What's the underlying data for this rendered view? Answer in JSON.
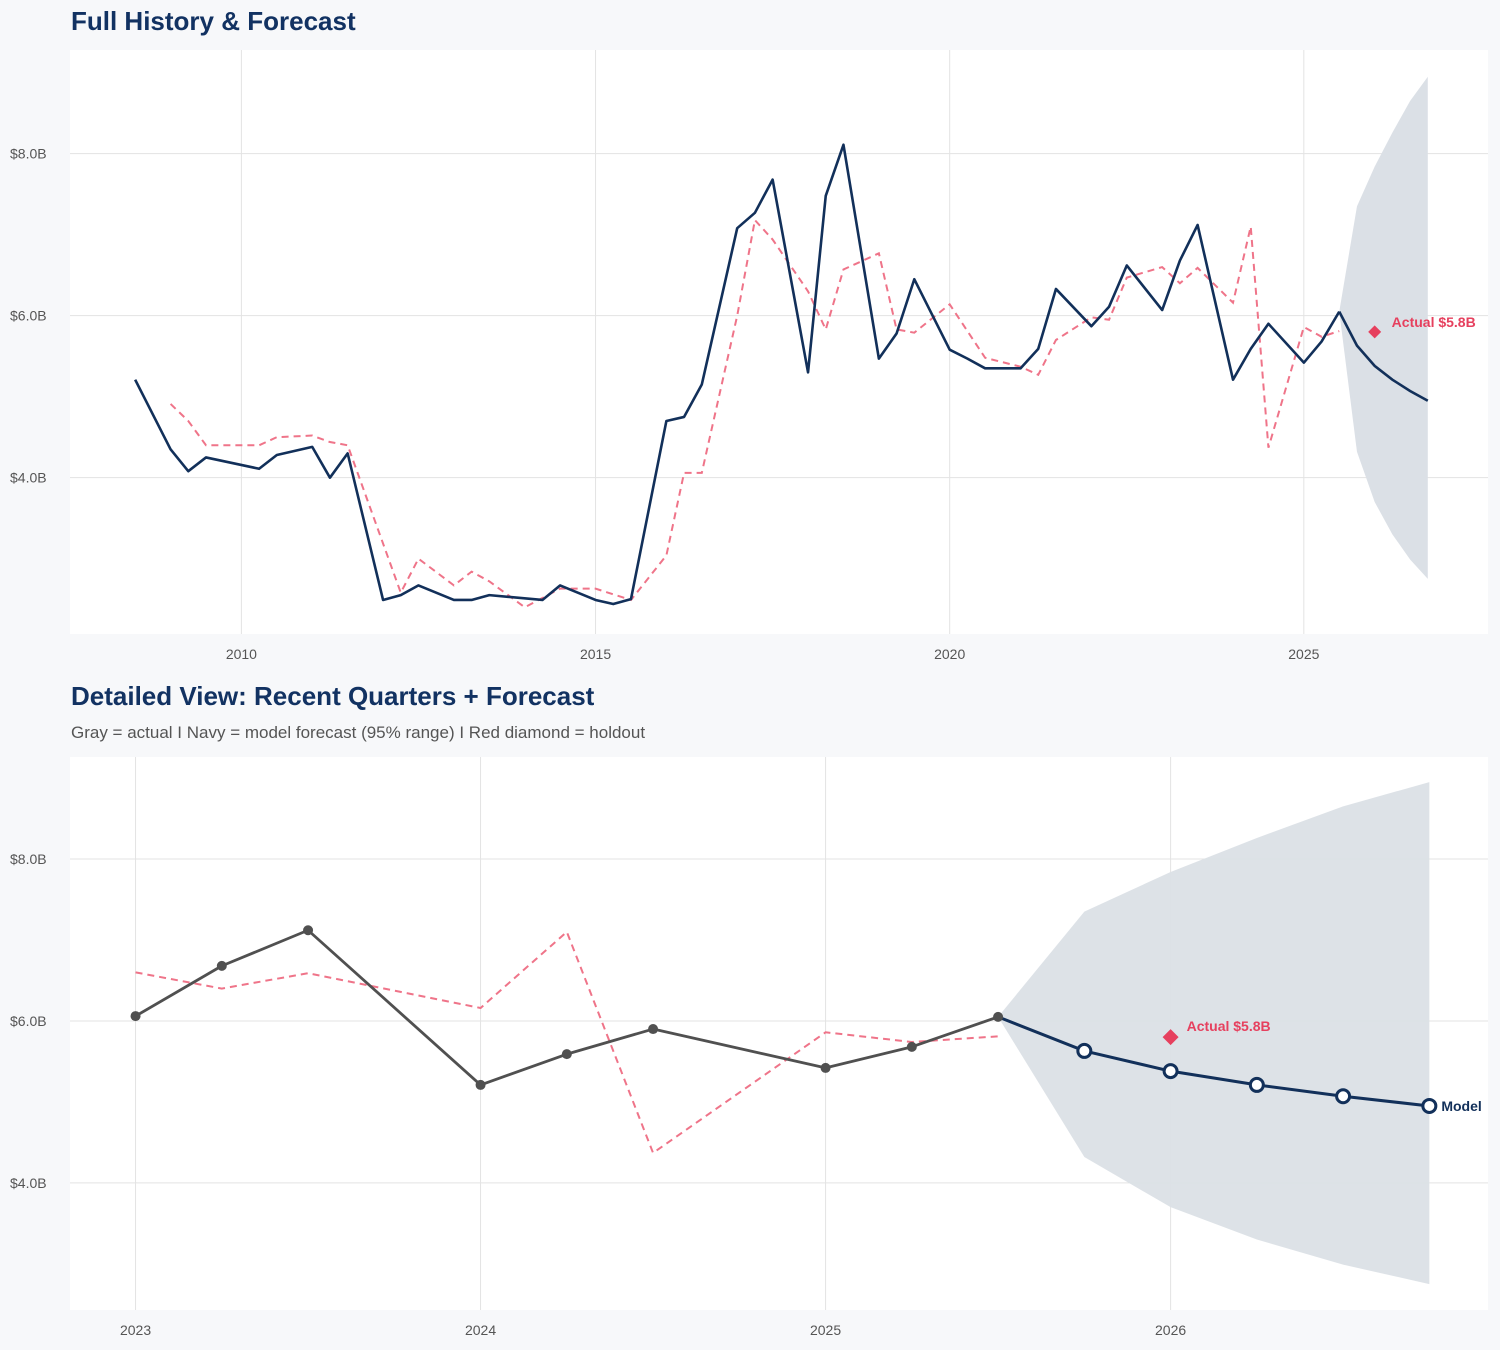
{
  "colors": {
    "navy": "#12305a",
    "actual_gray": "#505050",
    "fitted": "#ef7489",
    "holdout": "#e6405e",
    "band": "#dbe0e6",
    "grid": "#e3e3e3",
    "background": "#f7f8fa"
  },
  "chart_data": [
    {
      "type": "line",
      "title": "Full History & Forecast",
      "xlim": [
        2007.58,
        2027.6
      ],
      "ylim": [
        2.07,
        9.28
      ],
      "x_ticks": [
        2010,
        2015,
        2020,
        2025
      ],
      "x_tick_labels": [
        "2010",
        "2015",
        "2020",
        "2025"
      ],
      "y_ticks": [
        4,
        6,
        8
      ],
      "y_tick_labels": [
        "$4.0B",
        "$6.0B",
        "$8.0B"
      ],
      "grid": true,
      "actual": [
        [
          2008.5,
          5.21
        ],
        [
          2009.0,
          4.35
        ],
        [
          2009.25,
          4.08
        ],
        [
          2009.5,
          4.25
        ],
        [
          2010.25,
          4.11
        ],
        [
          2010.5,
          4.28
        ],
        [
          2011.0,
          4.38
        ],
        [
          2011.25,
          4.0
        ],
        [
          2011.5,
          4.3
        ],
        [
          2012.0,
          2.49
        ],
        [
          2012.25,
          2.55
        ],
        [
          2012.5,
          2.67
        ],
        [
          2013.0,
          2.49
        ],
        [
          2013.25,
          2.49
        ],
        [
          2013.5,
          2.55
        ],
        [
          2014.25,
          2.49
        ],
        [
          2014.5,
          2.67
        ],
        [
          2015.0,
          2.49
        ],
        [
          2015.25,
          2.44
        ],
        [
          2015.5,
          2.5
        ],
        [
          2016.0,
          4.7
        ],
        [
          2016.25,
          4.75
        ],
        [
          2016.5,
          5.15
        ],
        [
          2017.0,
          7.08
        ],
        [
          2017.25,
          7.27
        ],
        [
          2017.5,
          7.68
        ],
        [
          2018.0,
          5.3
        ],
        [
          2018.25,
          7.48
        ],
        [
          2018.5,
          8.11
        ],
        [
          2019.0,
          5.47
        ],
        [
          2019.25,
          5.78
        ],
        [
          2019.5,
          6.45
        ],
        [
          2020.0,
          5.58
        ],
        [
          2020.25,
          5.47
        ],
        [
          2020.5,
          5.35
        ],
        [
          2021.0,
          5.35
        ],
        [
          2021.25,
          5.59
        ],
        [
          2021.5,
          6.33
        ],
        [
          2022.0,
          5.87
        ],
        [
          2022.25,
          6.11
        ],
        [
          2022.5,
          6.62
        ],
        [
          2023.0,
          6.07
        ],
        [
          2023.25,
          6.68
        ],
        [
          2023.5,
          7.12
        ],
        [
          2024.0,
          5.21
        ],
        [
          2024.25,
          5.59
        ],
        [
          2024.5,
          5.9
        ],
        [
          2025.0,
          5.42
        ],
        [
          2025.25,
          5.68
        ],
        [
          2025.5,
          6.05
        ]
      ],
      "fitted": [
        [
          2009.0,
          4.91
        ],
        [
          2009.25,
          4.7
        ],
        [
          2009.5,
          4.4
        ],
        [
          2010.25,
          4.4
        ],
        [
          2010.5,
          4.5
        ],
        [
          2011.0,
          4.52
        ],
        [
          2011.25,
          4.44
        ],
        [
          2011.5,
          4.4
        ],
        [
          2012.25,
          2.58
        ],
        [
          2012.5,
          3.0
        ],
        [
          2013.0,
          2.67
        ],
        [
          2013.25,
          2.84
        ],
        [
          2013.5,
          2.72
        ],
        [
          2014.0,
          2.4
        ],
        [
          2014.5,
          2.63
        ],
        [
          2015.0,
          2.63
        ],
        [
          2015.5,
          2.49
        ],
        [
          2016.0,
          3.04
        ],
        [
          2016.25,
          4.06
        ],
        [
          2016.5,
          4.06
        ],
        [
          2017.0,
          6.0
        ],
        [
          2017.25,
          7.18
        ],
        [
          2017.5,
          6.94
        ],
        [
          2018.0,
          6.3
        ],
        [
          2018.25,
          5.83
        ],
        [
          2018.5,
          6.57
        ],
        [
          2019.0,
          6.77
        ],
        [
          2019.25,
          5.83
        ],
        [
          2019.5,
          5.79
        ],
        [
          2020.0,
          6.14
        ],
        [
          2020.5,
          5.48
        ],
        [
          2021.0,
          5.37
        ],
        [
          2021.25,
          5.27
        ],
        [
          2021.5,
          5.7
        ],
        [
          2022.0,
          5.98
        ],
        [
          2022.25,
          5.95
        ],
        [
          2022.5,
          6.47
        ],
        [
          2023.0,
          6.6
        ],
        [
          2023.25,
          6.4
        ],
        [
          2023.5,
          6.59
        ],
        [
          2024.0,
          6.16
        ],
        [
          2024.25,
          7.1
        ],
        [
          2024.5,
          4.37
        ],
        [
          2025.0,
          5.86
        ],
        [
          2025.25,
          5.74
        ],
        [
          2025.5,
          5.81
        ]
      ],
      "forecast": {
        "x": [
          2025.5,
          2025.75,
          2026.0,
          2026.25,
          2026.5,
          2026.75
        ],
        "mean": [
          6.05,
          5.63,
          5.38,
          5.21,
          5.07,
          4.95
        ],
        "lower": [
          6.05,
          4.32,
          3.7,
          3.3,
          2.99,
          2.75
        ],
        "upper": [
          6.05,
          7.35,
          7.84,
          8.26,
          8.65,
          8.95
        ]
      },
      "holdout": {
        "x": 2026.0,
        "value": 5.8,
        "label": "Actual $5.8B"
      }
    },
    {
      "type": "line",
      "title": "Detailed View: Recent Quarters + Forecast",
      "subtitle": "Gray = actual  I  Navy = model forecast (95% range)  I  Red diamond = holdout",
      "xlim": [
        2022.81,
        2026.92
      ],
      "ylim": [
        2.43,
        9.26
      ],
      "x_ticks": [
        2023,
        2024,
        2025,
        2026
      ],
      "x_tick_labels": [
        "2023",
        "2024",
        "2025",
        "2026"
      ],
      "y_ticks": [
        4,
        6,
        8
      ],
      "y_tick_labels": [
        "$4.0B",
        "$6.0B",
        "$8.0B"
      ],
      "grid": true,
      "actual": [
        [
          2023.0,
          6.06
        ],
        [
          2023.25,
          6.68
        ],
        [
          2023.5,
          7.12
        ],
        [
          2024.0,
          5.21
        ],
        [
          2024.25,
          5.59
        ],
        [
          2024.5,
          5.9
        ],
        [
          2025.0,
          5.42
        ],
        [
          2025.25,
          5.68
        ],
        [
          2025.5,
          6.05
        ]
      ],
      "fitted": [
        [
          2023.0,
          6.6
        ],
        [
          2023.25,
          6.4
        ],
        [
          2023.5,
          6.59
        ],
        [
          2024.0,
          6.16
        ],
        [
          2024.25,
          7.1
        ],
        [
          2024.5,
          4.37
        ],
        [
          2025.0,
          5.86
        ],
        [
          2025.25,
          5.74
        ],
        [
          2025.5,
          5.81
        ]
      ],
      "forecast": {
        "x": [
          2025.5,
          2025.75,
          2026.0,
          2026.25,
          2026.5,
          2026.75
        ],
        "mean": [
          6.05,
          5.63,
          5.38,
          5.21,
          5.07,
          4.95
        ],
        "lower": [
          6.05,
          4.32,
          3.7,
          3.3,
          2.99,
          2.75
        ],
        "upper": [
          6.05,
          7.35,
          7.84,
          8.26,
          8.65,
          8.95
        ],
        "end_label": "Model"
      },
      "holdout": {
        "x": 2026.0,
        "value": 5.8,
        "label": "Actual $5.8B"
      }
    }
  ]
}
